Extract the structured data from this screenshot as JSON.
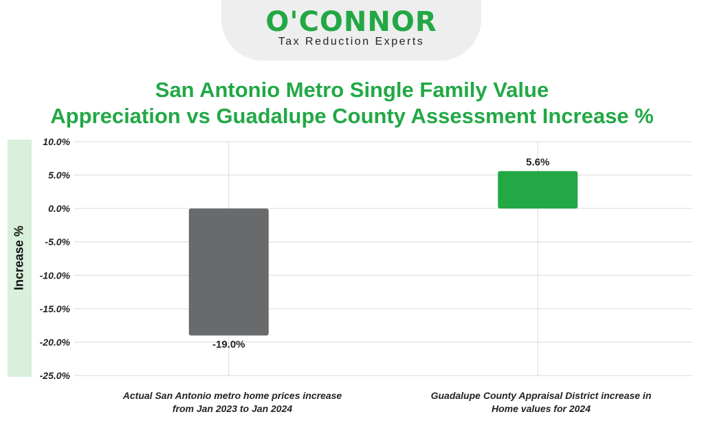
{
  "logo": {
    "name": "O'CONNOR",
    "tagline": "Tax Reduction Experts"
  },
  "colors": {
    "brand_green": "#22a845",
    "bar_gray": "#696a6c",
    "bar_green": "#22a845",
    "ylabel_band": "#d8f0dc"
  },
  "chart_data": {
    "type": "bar",
    "title_lines": [
      "San Antonio Metro Single Family Value",
      "Appreciation vs Guadalupe County Assessment Increase %"
    ],
    "ylabel": "Increase %",
    "xlabel": "",
    "ylim": [
      -25,
      10
    ],
    "yticks": [
      10,
      5,
      0,
      -5,
      -10,
      -15,
      -20,
      -25
    ],
    "ytick_labels": [
      "10.0%",
      "5.0%",
      "0.0%",
      "-5.0%",
      "-10.0%",
      "-15.0%",
      "-20.0%",
      "-25.0%"
    ],
    "categories": [
      [
        "Actual San Antonio metro home prices increase",
        "from Jan 2023 to Jan 2024"
      ],
      [
        "Guadalupe County Appraisal District increase in",
        "Home values for 2024"
      ]
    ],
    "values": [
      -19.0,
      5.6
    ],
    "value_labels": [
      "-19.0%",
      "5.6%"
    ],
    "bar_colors": [
      "#696a6c",
      "#22a845"
    ],
    "grid": true,
    "legend": "none"
  }
}
